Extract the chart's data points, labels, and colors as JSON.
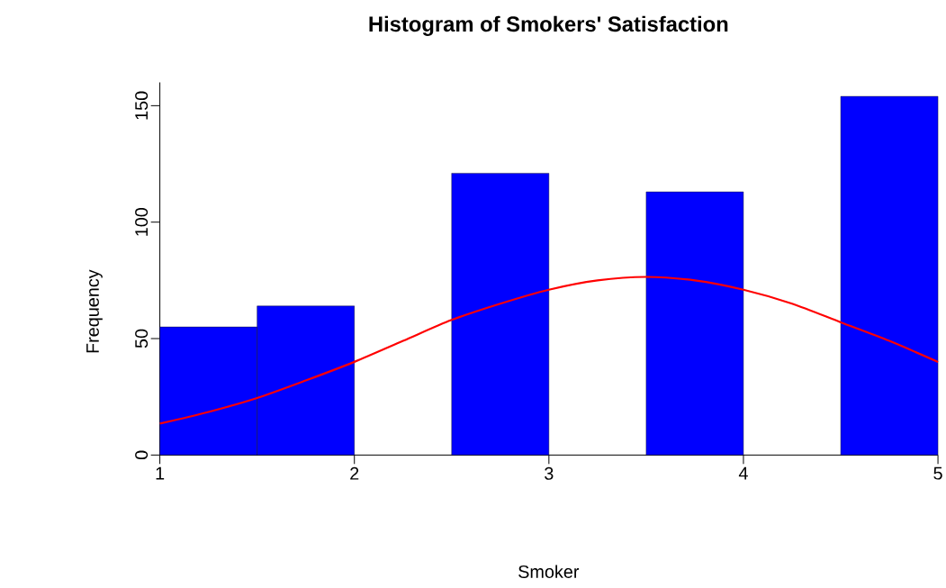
{
  "chart_data": {
    "type": "histogram",
    "title": "Histogram of Smokers' Satisfaction",
    "xlabel": "Smoker",
    "ylabel": "Frequency",
    "series": [
      {
        "type": "histogram",
        "bins": [
          1,
          1.5,
          2,
          2.5,
          3,
          3.5,
          4,
          4.5,
          5
        ],
        "values": [
          55,
          64,
          0,
          121,
          0,
          113,
          0,
          154
        ],
        "color": "#0000ff"
      },
      {
        "type": "line",
        "x": [
          1,
          1.25,
          1.5,
          1.75,
          2,
          2.25,
          2.5,
          2.75,
          3,
          3.25,
          3.5,
          3.75,
          4,
          4.25,
          4.5,
          4.75,
          5
        ],
        "values": [
          13.5,
          18.5,
          24.5,
          32,
          40,
          49,
          58,
          65,
          71,
          75,
          76.5,
          75,
          71,
          65,
          57,
          49,
          40
        ],
        "color": "#ff0000"
      }
    ],
    "xlim": [
      1,
      5
    ],
    "ylim": [
      0,
      160
    ],
    "xticks": [
      1,
      2,
      3,
      4,
      5
    ],
    "yticks": [
      0,
      50,
      100,
      150
    ],
    "grid": false
  }
}
